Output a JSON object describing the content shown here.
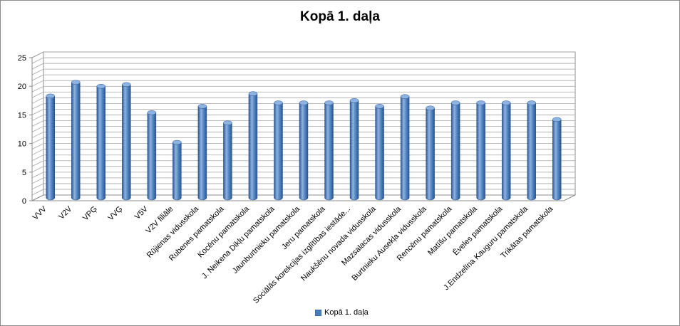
{
  "chart_data": {
    "type": "bar",
    "title": "Kopā 1. daļa",
    "categories": [
      "VVV",
      "V2V",
      "VPĢ",
      "VVĢ",
      "V5V",
      "V2V filiāle",
      "Rūjienas vidusskola",
      "Rubenes pamatskola",
      "Kocēnu pamatskola",
      "J. Neikena  Dikļu pamatskola",
      "Jaunburtnieku pamatskola",
      "Jeru pamatskola",
      "Sociālās korekcijas izglītības iestāde...",
      "Naukšēnu novada vidusskola",
      "Mazsalacas vidusskola",
      "Burtnieku Ausekļa vidusskola",
      "Rencēnu pamatskola",
      "Matīšu pamatskola",
      "Ēveles pamatskola",
      "J.Endzelīna Kauguru pamatskola",
      "Trikātas pamatskola"
    ],
    "series": [
      {
        "name": "Kopā 1. daļa",
        "values": [
          17.8,
          20.2,
          19.5,
          19.8,
          14.9,
          9.7,
          16.0,
          13.1,
          18.2,
          16.6,
          16.6,
          16.6,
          17.0,
          16.0,
          17.7,
          15.7,
          16.6,
          16.6,
          16.6,
          16.6,
          13.7
        ]
      }
    ],
    "ylim": [
      0,
      25
    ],
    "yticks": [
      0,
      5,
      10,
      15,
      20,
      25
    ],
    "grid": true,
    "legend_position": "bottom",
    "colors": {
      "bar": "#4a7ebb",
      "bar_dark": "#2c5590",
      "bar_light": "#8db3e2",
      "grid": "#a6a6a6"
    }
  }
}
